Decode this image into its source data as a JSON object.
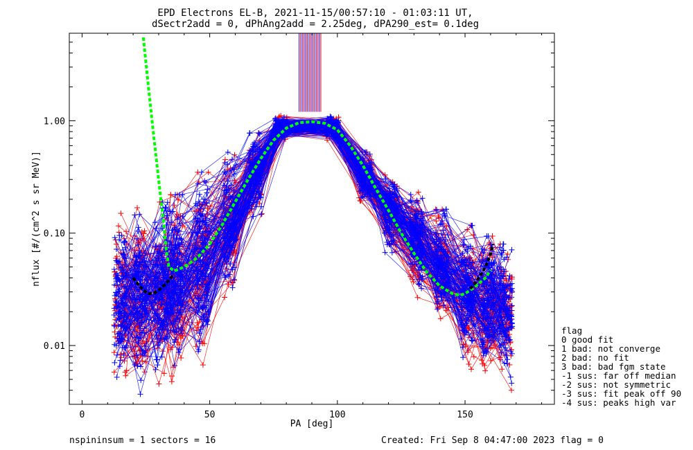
{
  "title_line1": "EPD Electrons EL-B, 2021-11-15/00:57:10 - 01:03:11 UT,",
  "title_line2": "dSectr2add = 0, dPhAng2add = 2.25deg, dPA290_est=   0.1deg",
  "footer": {
    "left": "nspininsum =  1  sectors = 16",
    "right": "Created: Fri Sep  8 04:47:00 2023   flag = 0"
  },
  "legend": {
    "title": "flag",
    "items": [
      " 0 good fit",
      " 1 bad: not converge",
      " 2 bad: no fit",
      " 3 bad: bad fgm state",
      "-1 sus: far off median",
      "-2 sus: not symmetric",
      "-3 sus: fit peak off 90",
      "-4 sus: peaks high var"
    ]
  },
  "colors": {
    "series_a": "#0000ff",
    "series_b": "#ff0000",
    "fit": "#00ff00",
    "fit_detail": "#000000"
  },
  "chart_data": {
    "type": "line",
    "xlabel": "PA [deg]",
    "ylabel": "nflux [#/(cm^2 s sr MeV)]",
    "xlim": [
      -5,
      185
    ],
    "ylim": [
      0.003,
      6.0
    ],
    "yscale": "log",
    "xticks": [
      0,
      50,
      100,
      150
    ],
    "yticks": [
      0.01,
      0.1,
      1.0
    ],
    "ytick_labels": [
      "0.01",
      "0.10",
      "1.00"
    ],
    "grid": false,
    "legend_position": "right, outside plot",
    "series": [
      {
        "color": "#00ff00",
        "style": "dashed",
        "x": [
          24,
          26,
          28,
          30,
          32,
          33,
          34,
          36,
          40,
          45,
          50,
          55,
          60,
          65,
          70,
          75,
          80,
          85,
          90,
          95,
          100,
          105,
          110,
          115,
          120,
          125,
          130,
          135,
          140,
          145,
          148,
          150,
          152,
          155,
          158,
          160
        ],
        "y": [
          5.5,
          2.0,
          0.75,
          0.3,
          0.12,
          0.07,
          0.05,
          0.046,
          0.05,
          0.06,
          0.08,
          0.12,
          0.19,
          0.3,
          0.46,
          0.67,
          0.86,
          0.96,
          0.98,
          0.95,
          0.83,
          0.6,
          0.4,
          0.25,
          0.16,
          0.1,
          0.066,
          0.045,
          0.034,
          0.029,
          0.028,
          0.029,
          0.031,
          0.035,
          0.04,
          0.047
        ]
      },
      {
        "color": "#000000",
        "style": "dashed",
        "x": [
          20,
          22,
          24,
          26,
          28,
          30,
          32,
          34,
          36
        ],
        "y": [
          0.04,
          0.035,
          0.031,
          0.029,
          0.029,
          0.031,
          0.034,
          0.038,
          0.043
        ]
      },
      {
        "color": "#000000",
        "style": "dashed",
        "x": [
          152,
          154,
          156,
          158,
          160,
          161
        ],
        "y": [
          0.032,
          0.036,
          0.042,
          0.05,
          0.065,
          0.08
        ]
      }
    ],
    "spread_envelope": {
      "x": [
        15,
        35,
        50,
        62,
        75,
        80,
        85,
        95,
        100,
        110,
        122,
        135,
        150,
        165
      ],
      "y_high": [
        0.15,
        0.2,
        0.4,
        0.6,
        1.05,
        1.15,
        1.12,
        1.1,
        1.1,
        0.55,
        0.32,
        0.2,
        0.12,
        0.08
      ],
      "y_low": [
        0.0035,
        0.004,
        0.007,
        0.04,
        0.55,
        0.7,
        0.72,
        0.7,
        0.65,
        0.2,
        0.05,
        0.02,
        0.006,
        0.004
      ]
    },
    "peak_band_x": [
      85,
      94
    ]
  }
}
